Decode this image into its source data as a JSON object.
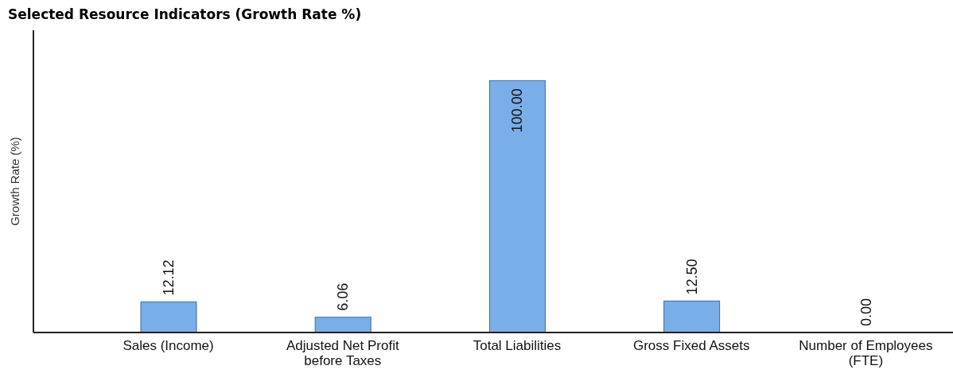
{
  "chart_data": {
    "type": "bar",
    "title": "Selected Resource Indicators (Growth Rate %)",
    "ylabel": "Growth Rate (%)",
    "categories": [
      "Sales (Income)",
      "Adjusted Net Profit before Taxes",
      "Total Liabilities",
      "Gross Fixed Assets",
      "Number of Employees (FTE)"
    ],
    "values": [
      12.12,
      6.06,
      100.0,
      12.5,
      0.0
    ],
    "value_labels": [
      "12.12",
      "6.06",
      "100.00",
      "12.50",
      "0.00"
    ],
    "color": "#7aaee8",
    "grid": false,
    "legend": false
  }
}
